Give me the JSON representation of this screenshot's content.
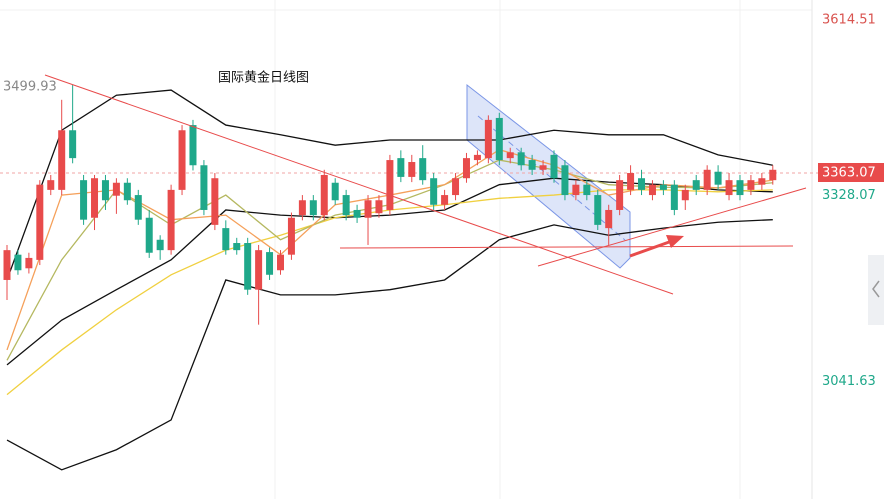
{
  "chart_data": {
    "type": "candlestick",
    "title": "国际黄金日线图",
    "ylim": [
      2860,
      3630
    ],
    "up_color": "#e84b4b",
    "down_color": "#1fa88a",
    "open": [
      3198,
      3237,
      3216,
      3229,
      3337,
      3337,
      3429,
      3352,
      3294,
      3352,
      3328,
      3348,
      3329,
      3294,
      3260,
      3244,
      3337,
      3437,
      3375,
      3283,
      3278,
      3255,
      3255,
      3183,
      3241,
      3213,
      3237,
      3298,
      3321,
      3298,
      3348,
      3329,
      3306,
      3294,
      3301,
      3306,
      3386,
      3357,
      3386,
      3355,
      3314,
      3329,
      3355,
      3383,
      3386,
      3448,
      3386,
      3395,
      3383,
      3368,
      3391,
      3375,
      3329,
      3345,
      3329,
      3278,
      3306,
      3337,
      3355,
      3329,
      3345,
      3345,
      3321,
      3352,
      3337,
      3365,
      3329,
      3352,
      3337,
      3345,
      3352
    ],
    "high": [
      3252,
      3244,
      3240,
      3352,
      3360,
      3476,
      3499,
      3360,
      3360,
      3360,
      3355,
      3355,
      3337,
      3306,
      3267,
      3345,
      3437,
      3445,
      3383,
      3363,
      3290,
      3263,
      3263,
      3252,
      3248,
      3244,
      3302,
      3329,
      3329,
      3368,
      3355,
      3337,
      3314,
      3329,
      3329,
      3391,
      3398,
      3391,
      3406,
      3363,
      3337,
      3363,
      3394,
      3398,
      3452,
      3456,
      3402,
      3402,
      3391,
      3383,
      3398,
      3383,
      3352,
      3352,
      3337,
      3314,
      3360,
      3375,
      3368,
      3352,
      3352,
      3352,
      3345,
      3360,
      3375,
      3375,
      3363,
      3360,
      3360,
      3363,
      3375
    ],
    "low": [
      3167,
      3206,
      3208,
      3221,
      3329,
      3329,
      3378,
      3283,
      3275,
      3306,
      3300,
      3314,
      3283,
      3232,
      3229,
      3237,
      3329,
      3367,
      3298,
      3275,
      3237,
      3237,
      3175,
      3129,
      3198,
      3206,
      3229,
      3290,
      3290,
      3290,
      3314,
      3290,
      3286,
      3252,
      3294,
      3298,
      3349,
      3349,
      3345,
      3306,
      3306,
      3321,
      3348,
      3375,
      3378,
      3375,
      3378,
      3367,
      3360,
      3360,
      3348,
      3321,
      3321,
      3321,
      3275,
      3252,
      3298,
      3329,
      3329,
      3321,
      3329,
      3298,
      3306,
      3329,
      3329,
      3337,
      3321,
      3321,
      3329,
      3337,
      3345
    ],
    "close": [
      3244,
      3213,
      3232,
      3345,
      3352,
      3429,
      3386,
      3291,
      3355,
      3321,
      3348,
      3321,
      3291,
      3240,
      3244,
      3337,
      3429,
      3375,
      3306,
      3355,
      3244,
      3244,
      3183,
      3244,
      3206,
      3237,
      3294,
      3321,
      3298,
      3360,
      3321,
      3298,
      3294,
      3321,
      3321,
      3383,
      3357,
      3380,
      3352,
      3314,
      3329,
      3355,
      3386,
      3391,
      3445,
      3383,
      3395,
      3375,
      3368,
      3375,
      3355,
      3329,
      3345,
      3329,
      3283,
      3306,
      3352,
      3363,
      3337,
      3345,
      3337,
      3306,
      3337,
      3337,
      3368,
      3345,
      3352,
      3329,
      3352,
      3355,
      3368
    ],
    "indicators": [
      {
        "color": "#111111",
        "x": [
          0,
          5,
          10,
          15,
          20,
          25,
          30,
          35,
          40,
          45,
          50,
          55,
          60,
          65,
          70
        ],
        "values": [
          3198,
          3429,
          3483,
          3491,
          3437,
          3422,
          3406,
          3414,
          3414,
          3414,
          3429,
          3422,
          3422,
          3391,
          3375
        ]
      },
      {
        "color": "#111111",
        "x": [
          0,
          5,
          10,
          15,
          20,
          25,
          30,
          35,
          40,
          45,
          50,
          55,
          60,
          65,
          70
        ],
        "values": [
          2951,
          2905,
          2936,
          2982,
          3198,
          3175,
          3175,
          3183,
          3198,
          3260,
          3283,
          3267,
          3278,
          3287,
          3291
        ]
      },
      {
        "color": "#111111",
        "x": [
          0,
          5,
          10,
          15,
          20,
          25,
          30,
          35,
          40,
          45,
          50,
          55,
          60,
          65,
          70
        ],
        "values": [
          3067,
          3136,
          3183,
          3229,
          3306,
          3298,
          3294,
          3298,
          3306,
          3345,
          3355,
          3349,
          3345,
          3337,
          3334
        ]
      },
      {
        "color": "#f0d040",
        "x": [
          0,
          5,
          10,
          15,
          20,
          25,
          30,
          35,
          40,
          45,
          50,
          55,
          60,
          65,
          70
        ],
        "values": [
          3021,
          3090,
          3152,
          3206,
          3244,
          3267,
          3294,
          3306,
          3314,
          3324,
          3329,
          3337,
          3337,
          3334,
          3337
        ]
      },
      {
        "color": "#b5b860",
        "x": [
          0,
          5,
          10,
          15,
          20,
          25,
          30,
          35,
          40,
          45,
          50,
          55,
          60,
          65,
          70
        ],
        "values": [
          3074,
          3229,
          3337,
          3283,
          3329,
          3260,
          3298,
          3314,
          3345,
          3383,
          3368,
          3345,
          3341,
          3340,
          3348
        ]
      },
      {
        "color": "#f5a05a",
        "x": [
          0,
          5,
          10,
          15,
          20,
          25,
          30,
          35,
          40,
          45,
          50,
          55,
          60,
          65,
          70
        ],
        "values": [
          3090,
          3329,
          3337,
          3291,
          3298,
          3237,
          3314,
          3329,
          3345,
          3399,
          3375,
          3329,
          3345,
          3340,
          3352
        ]
      }
    ],
    "high_label": 3499.93,
    "price_labels": [
      {
        "value": 3614.51,
        "color": "#d9534f"
      },
      {
        "value": 3328.07,
        "color": "#1fa88a"
      },
      {
        "value": 3041.63,
        "color": "#1fa88a"
      }
    ],
    "last_price": 3363.07
  }
}
